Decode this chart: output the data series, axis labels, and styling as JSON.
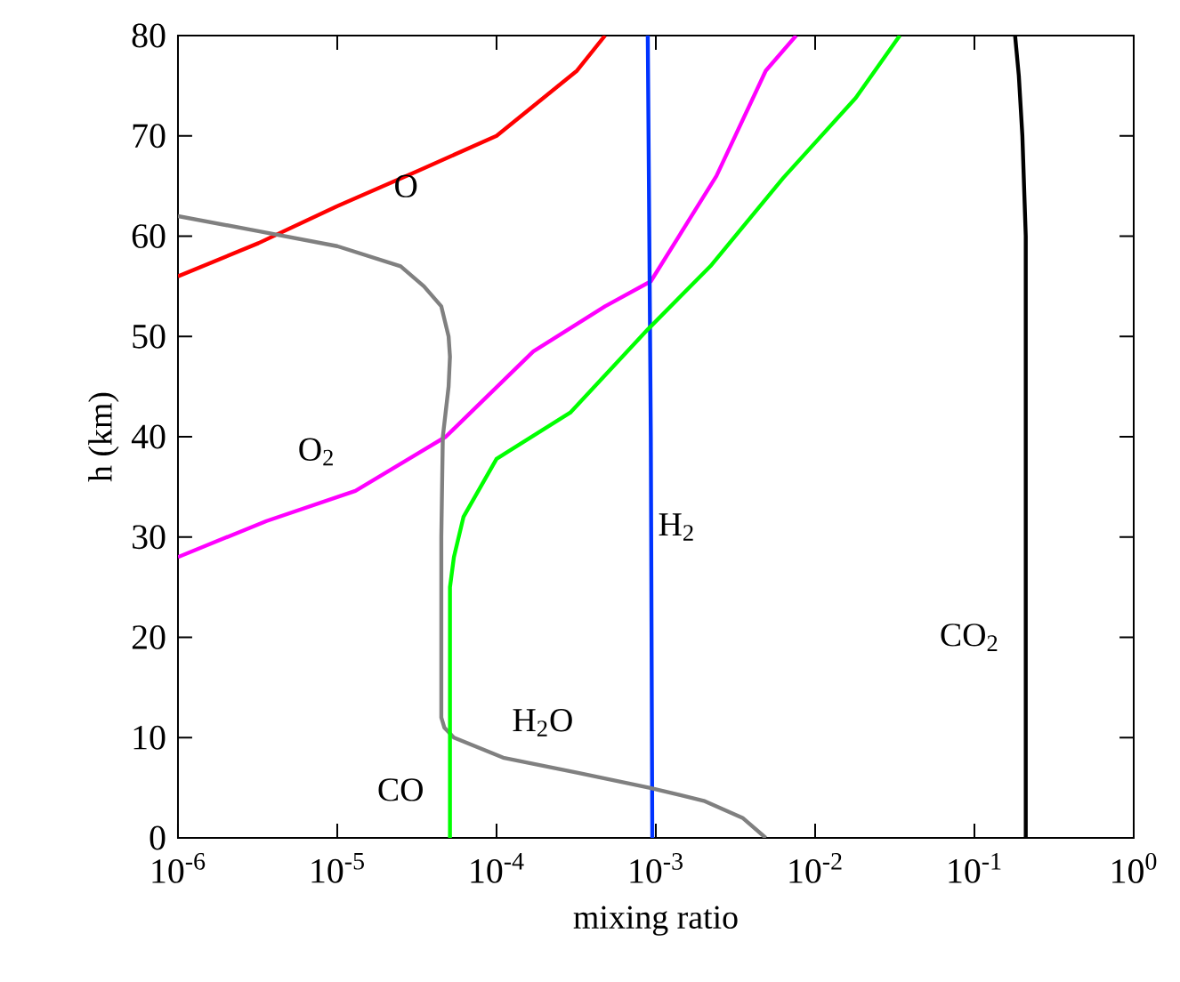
{
  "chart_data": {
    "type": "line",
    "xlabel": "mixing ratio",
    "ylabel": "h (km)",
    "log": "x",
    "grid": false,
    "legend": false,
    "marker": "none",
    "line_style": "solid",
    "xlim": [
      1e-06,
      1
    ],
    "ylim": [
      0,
      80
    ],
    "xticks": [
      {
        "value": 1e-06,
        "label": "10$^{-6}$"
      },
      {
        "value": 1e-05,
        "label": "10$^{-5}$"
      },
      {
        "value": 0.0001,
        "label": "10$^{-4}$"
      },
      {
        "value": 0.001,
        "label": "10$^{-3}$"
      },
      {
        "value": 0.01,
        "label": "10$^{-2}$"
      },
      {
        "value": 0.1,
        "label": "10$^{-1}$"
      },
      {
        "value": 1,
        "label": "10$^{0}$"
      }
    ],
    "yticks": [
      0,
      10,
      20,
      30,
      40,
      50,
      60,
      70,
      80
    ],
    "series": [
      {
        "name": "O",
        "color": "#ff0000",
        "x": [
          1e-06,
          3.2e-06,
          1e-05,
          3.2e-05,
          0.0001,
          0.00032,
          0.00048
        ],
        "values": [
          56,
          59.3,
          63,
          66.5,
          70,
          76.5,
          80
        ]
      },
      {
        "name": "O$_{2}$",
        "color": "#ff00ff",
        "x": [
          1e-06,
          3.6e-06,
          1.3e-05,
          4.8e-05,
          0.00017,
          0.00048,
          0.00093,
          0.0024,
          0.0049,
          0.0076
        ],
        "values": [
          28,
          31.6,
          34.6,
          40,
          48.5,
          53,
          55.5,
          66,
          76.5,
          80
        ]
      },
      {
        "name": "H$_{2}$",
        "color": "#0033ff",
        "x": [
          0.00095,
          0.00093,
          0.00091,
          0.00089
        ],
        "values": [
          0,
          40,
          60,
          80
        ]
      },
      {
        "name": "CO$_{2}$",
        "color": "#000000",
        "x": [
          0.21,
          0.21,
          0.21,
          0.2,
          0.19,
          0.18
        ],
        "values": [
          0,
          40,
          60,
          70,
          76,
          80
        ]
      },
      {
        "name": "H$_{2}$O",
        "color": "#808080",
        "x": [
          0.0049,
          0.0035,
          0.002,
          0.00091,
          0.00032,
          0.00011,
          5.4e-05,
          4.7e-05,
          4.5e-05,
          4.5e-05,
          4.6e-05,
          5e-05,
          5.1e-05,
          5e-05,
          4.5e-05,
          3.5e-05,
          2.5e-05,
          1e-05,
          3.2e-06,
          1e-06
        ],
        "values": [
          0,
          2,
          3.7,
          5,
          6.5,
          8,
          10,
          11,
          12,
          30,
          40,
          45,
          48,
          50,
          53,
          55,
          57,
          59,
          60.5,
          62
        ]
      },
      {
        "name": "CO",
        "color": "#00ff00",
        "x": [
          5.1e-05,
          5.1e-05,
          5.4e-05,
          6.2e-05,
          0.0001,
          0.00029,
          0.00089,
          0.0022,
          0.0063,
          0.018,
          0.034
        ],
        "values": [
          0,
          25,
          28,
          32,
          37.8,
          42.4,
          50.7,
          57,
          65.8,
          73.8,
          80
        ]
      }
    ]
  }
}
